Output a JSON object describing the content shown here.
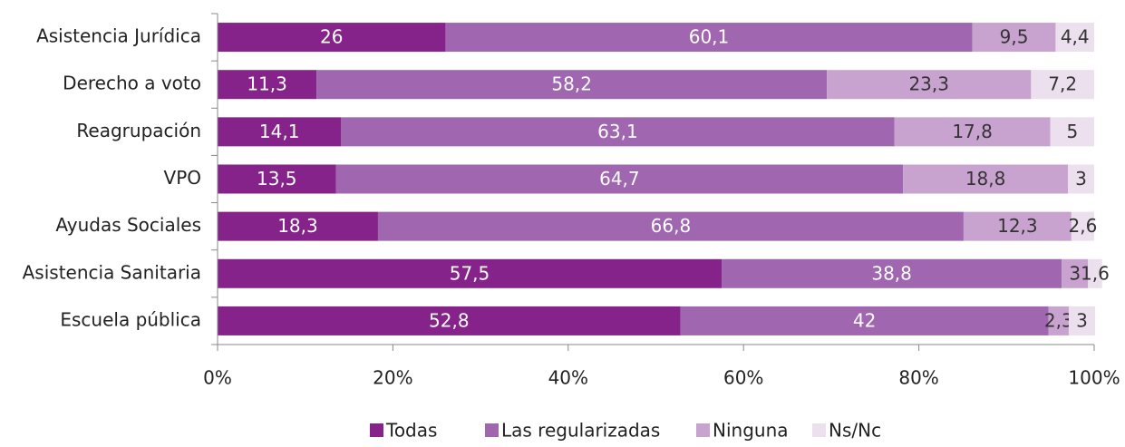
{
  "chart_data": {
    "type": "stacked_barh",
    "categories": [
      "Asistencia Jurídica",
      "Derecho a voto",
      "Reagrupación",
      "VPO",
      "Ayudas Sociales",
      "Asistencia Sanitaria",
      "Escuela pública"
    ],
    "series": [
      {
        "name": "Todas",
        "color": "#86238a",
        "values": [
          26,
          11.3,
          14.1,
          13.5,
          18.3,
          57.5,
          52.8
        ],
        "value_labels": [
          "26",
          "11,3",
          "14,1",
          "13,5",
          "18,3",
          "57,5",
          "52,8"
        ]
      },
      {
        "name": "Las regularizadas",
        "color": "#a066b0",
        "values": [
          60.1,
          58.2,
          63.1,
          64.7,
          66.8,
          38.8,
          42
        ],
        "value_labels": [
          "60,1",
          "58,2",
          "63,1",
          "64,7",
          "66,8",
          "38,8",
          "42"
        ]
      },
      {
        "name": "Ninguna",
        "color": "#c9a3d0",
        "values": [
          9.5,
          23.3,
          17.8,
          18.8,
          12.3,
          3,
          2.3
        ],
        "value_labels": [
          "9,5",
          "23,3",
          "17,8",
          "18,8",
          "12,3",
          "3",
          "2,3"
        ]
      },
      {
        "name": "Ns/Nc",
        "color": "#ecdfee",
        "values": [
          4.4,
          7.2,
          5,
          3,
          2.6,
          1.6,
          3
        ],
        "value_labels": [
          "4,4",
          "7,2",
          "5",
          "3",
          "2,6",
          "1,6",
          "3"
        ]
      }
    ],
    "xlim": [
      0,
      100
    ],
    "xticks": [
      {
        "value": 0,
        "label": "0%"
      },
      {
        "value": 20,
        "label": "20%"
      },
      {
        "value": 40,
        "label": "40%"
      },
      {
        "value": 60,
        "label": "60%"
      },
      {
        "value": 80,
        "label": "80%"
      },
      {
        "value": 100,
        "label": "100%"
      }
    ],
    "legend": "bottom"
  }
}
